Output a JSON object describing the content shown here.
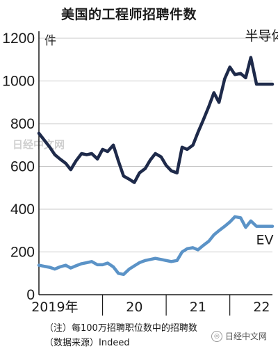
{
  "title": "美国的工程师招聘件数",
  "unit": "件",
  "watermark": "日经中文网",
  "note_1": "（注）每100万招聘职位数中的招聘数",
  "note_2": "（数据来源）Indeed",
  "badge": "日经中文网",
  "badge_icon": "wechat-icon",
  "colors": {
    "semiconductor": "#1e2a4a",
    "ev": "#5b93c7",
    "axis": "#1a1a1a"
  },
  "chart_data": {
    "type": "line",
    "title": "美国的工程师招聘件数",
    "ylabel": "件",
    "ylim": [
      0,
      1200
    ],
    "y_ticks": [
      0,
      200,
      400,
      600,
      800,
      1000,
      1200
    ],
    "x_ticks": [
      {
        "label": "2019年",
        "x": 2019.25
      },
      {
        "label": "20",
        "x": 2020.5
      },
      {
        "label": "21",
        "x": 2021.5
      },
      {
        "label": "22",
        "x": 2022.5
      }
    ],
    "xlim": [
      2019.0,
      2022.67
    ],
    "grid": true,
    "series": [
      {
        "name": "半导体",
        "x": [
          2019.0,
          2019.08,
          2019.17,
          2019.25,
          2019.33,
          2019.42,
          2019.5,
          2019.58,
          2019.67,
          2019.75,
          2019.83,
          2019.92,
          2020.0,
          2020.08,
          2020.17,
          2020.25,
          2020.33,
          2020.42,
          2020.5,
          2020.58,
          2020.67,
          2020.75,
          2020.83,
          2020.92,
          2021.0,
          2021.08,
          2021.17,
          2021.25,
          2021.33,
          2021.42,
          2021.5,
          2021.58,
          2021.67,
          2021.75,
          2021.83,
          2021.92,
          2022.0,
          2022.08,
          2022.17,
          2022.25,
          2022.33,
          2022.42,
          2022.5,
          2022.58,
          2022.67
        ],
        "values": [
          755,
          725,
          690,
          655,
          635,
          615,
          585,
          625,
          660,
          655,
          660,
          635,
          680,
          670,
          700,
          625,
          555,
          540,
          525,
          570,
          590,
          630,
          660,
          645,
          605,
          580,
          570,
          690,
          680,
          700,
          760,
          815,
          880,
          945,
          900,
          1010,
          1065,
          1030,
          1035,
          1015,
          1110,
          985,
          985,
          985,
          985
        ]
      },
      {
        "name": "EV",
        "x": [
          2019.0,
          2019.08,
          2019.17,
          2019.25,
          2019.33,
          2019.42,
          2019.5,
          2019.58,
          2019.67,
          2019.75,
          2019.83,
          2019.92,
          2020.0,
          2020.08,
          2020.17,
          2020.25,
          2020.33,
          2020.42,
          2020.5,
          2020.58,
          2020.67,
          2020.75,
          2020.83,
          2020.92,
          2021.0,
          2021.08,
          2021.17,
          2021.25,
          2021.33,
          2021.42,
          2021.5,
          2021.58,
          2021.67,
          2021.75,
          2021.83,
          2021.92,
          2022.0,
          2022.08,
          2022.17,
          2022.25,
          2022.33,
          2022.42,
          2022.5,
          2022.58,
          2022.67
        ],
        "values": [
          138,
          133,
          128,
          120,
          130,
          138,
          125,
          135,
          145,
          150,
          155,
          140,
          140,
          148,
          130,
          100,
          95,
          120,
          135,
          150,
          160,
          165,
          170,
          165,
          160,
          155,
          160,
          200,
          215,
          220,
          210,
          230,
          250,
          280,
          300,
          320,
          340,
          365,
          360,
          315,
          345,
          320,
          320,
          320,
          320
        ]
      }
    ],
    "series_labels": [
      "半导体",
      "EV"
    ]
  }
}
